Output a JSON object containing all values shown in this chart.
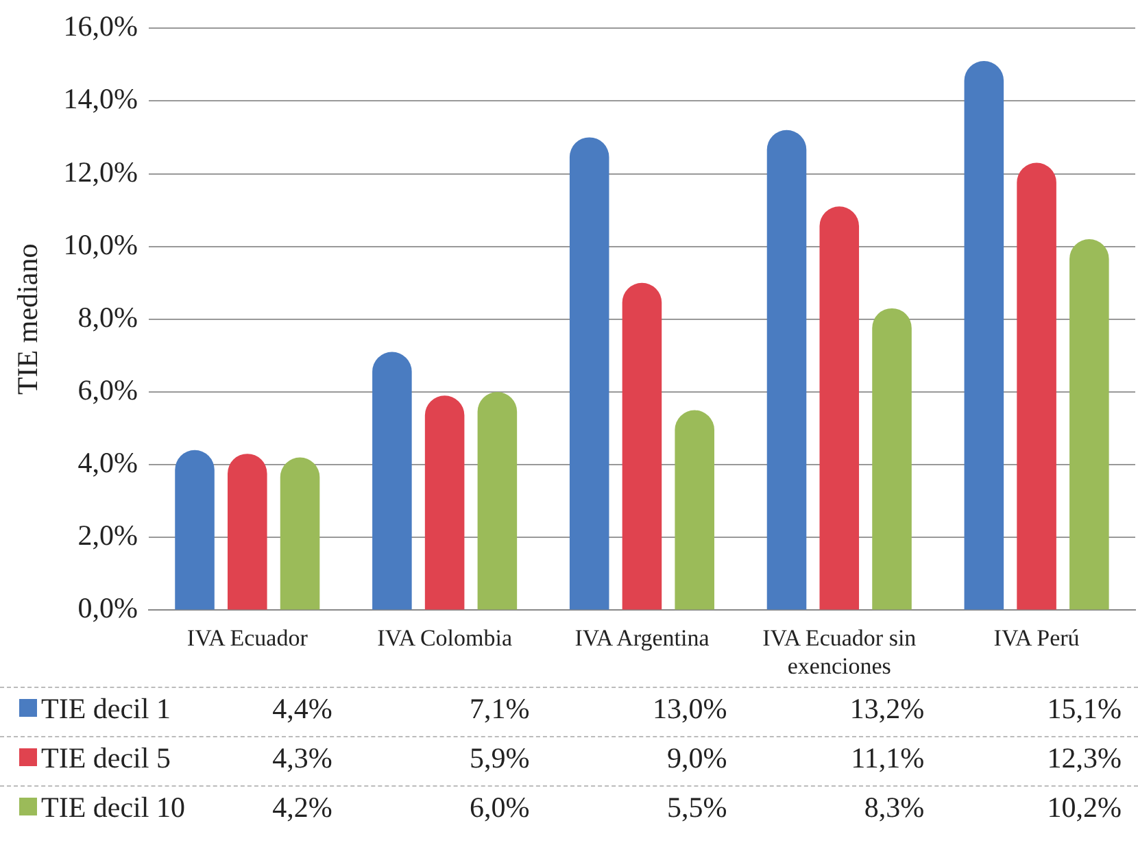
{
  "chart_data": {
    "type": "bar",
    "ylabel": "TIE mediano",
    "categories": [
      "IVA Ecuador",
      "IVA Colombia",
      "IVA Argentina",
      "IVA Ecuador sin exenciones",
      "IVA Perú"
    ],
    "series": [
      {
        "name": "TIE decil 1",
        "color": "#4a7cc1",
        "values": [
          4.4,
          7.1,
          13.0,
          13.2,
          15.1
        ],
        "value_labels": [
          "4,4%",
          "7,1%",
          "13,0%",
          "13,2%",
          "15,1%"
        ]
      },
      {
        "name": "TIE decil 5",
        "color": "#e0434f",
        "values": [
          4.3,
          5.9,
          9.0,
          11.1,
          12.3
        ],
        "value_labels": [
          "4,3%",
          "5,9%",
          "9,0%",
          "11,1%",
          "12,3%"
        ]
      },
      {
        "name": "TIE decil 10",
        "color": "#9bbb59",
        "values": [
          4.2,
          6.0,
          5.5,
          8.3,
          10.2
        ],
        "value_labels": [
          "4,2%",
          "6,0%",
          "5,5%",
          "8,3%",
          "10,2%"
        ]
      }
    ],
    "ylim": [
      0,
      16
    ],
    "yticks": [
      {
        "value": 0,
        "label": "0,0%"
      },
      {
        "value": 2,
        "label": "2,0%"
      },
      {
        "value": 4,
        "label": "4,0%"
      },
      {
        "value": 6,
        "label": "6,0%"
      },
      {
        "value": 8,
        "label": "8,0%"
      },
      {
        "value": 10,
        "label": "10,0%"
      },
      {
        "value": 12,
        "label": "12,0%"
      },
      {
        "value": 14,
        "label": "14,0%"
      },
      {
        "value": 16,
        "label": "16,0%"
      }
    ],
    "grid": "y",
    "legend": "bottom left"
  }
}
